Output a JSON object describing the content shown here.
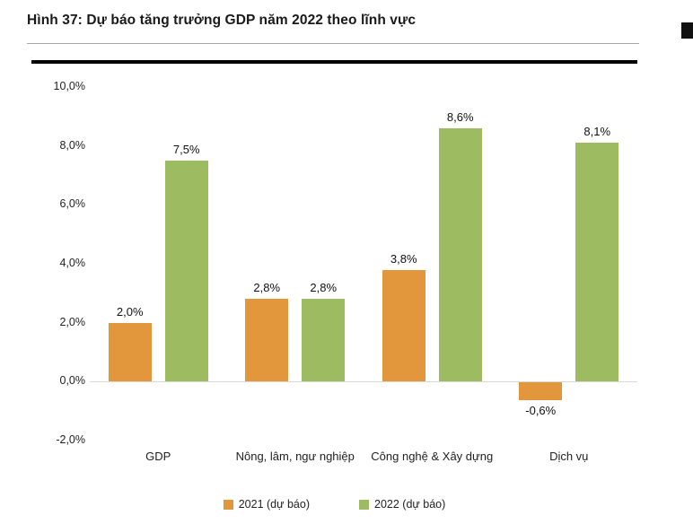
{
  "title": "Hình 37: Dự báo tăng trưởng GDP năm 2022 theo lĩnh vực",
  "chart_data": {
    "type": "bar",
    "title": "Hình 37: Dự báo tăng trưởng GDP năm 2022 theo lĩnh vực",
    "categories": [
      "GDP",
      "Nông, lâm, ngư nghiệp",
      "Công nghệ & Xây dựng",
      "Dịch vụ"
    ],
    "series": [
      {
        "name": "2021 (dự báo)",
        "color": "#E2973C",
        "values": [
          2.0,
          2.8,
          3.8,
          -0.6
        ],
        "labels": [
          "2,0%",
          "2,8%",
          "3,8%",
          "-0,6%"
        ]
      },
      {
        "name": "2022 (dự báo)",
        "color": "#9DBB61",
        "values": [
          7.5,
          2.8,
          8.6,
          8.1
        ],
        "labels": [
          "7,5%",
          "2,8%",
          "8,6%",
          "8,1%"
        ]
      }
    ],
    "xlabel": "",
    "ylabel": "",
    "ylim": [
      -2,
      10
    ],
    "ytick_step": 2,
    "ytick_labels": [
      "-2,0%",
      "0,0%",
      "2,0%",
      "4,0%",
      "6,0%",
      "8,0%",
      "10,0%"
    ],
    "grid": false,
    "legend_position": "bottom"
  }
}
